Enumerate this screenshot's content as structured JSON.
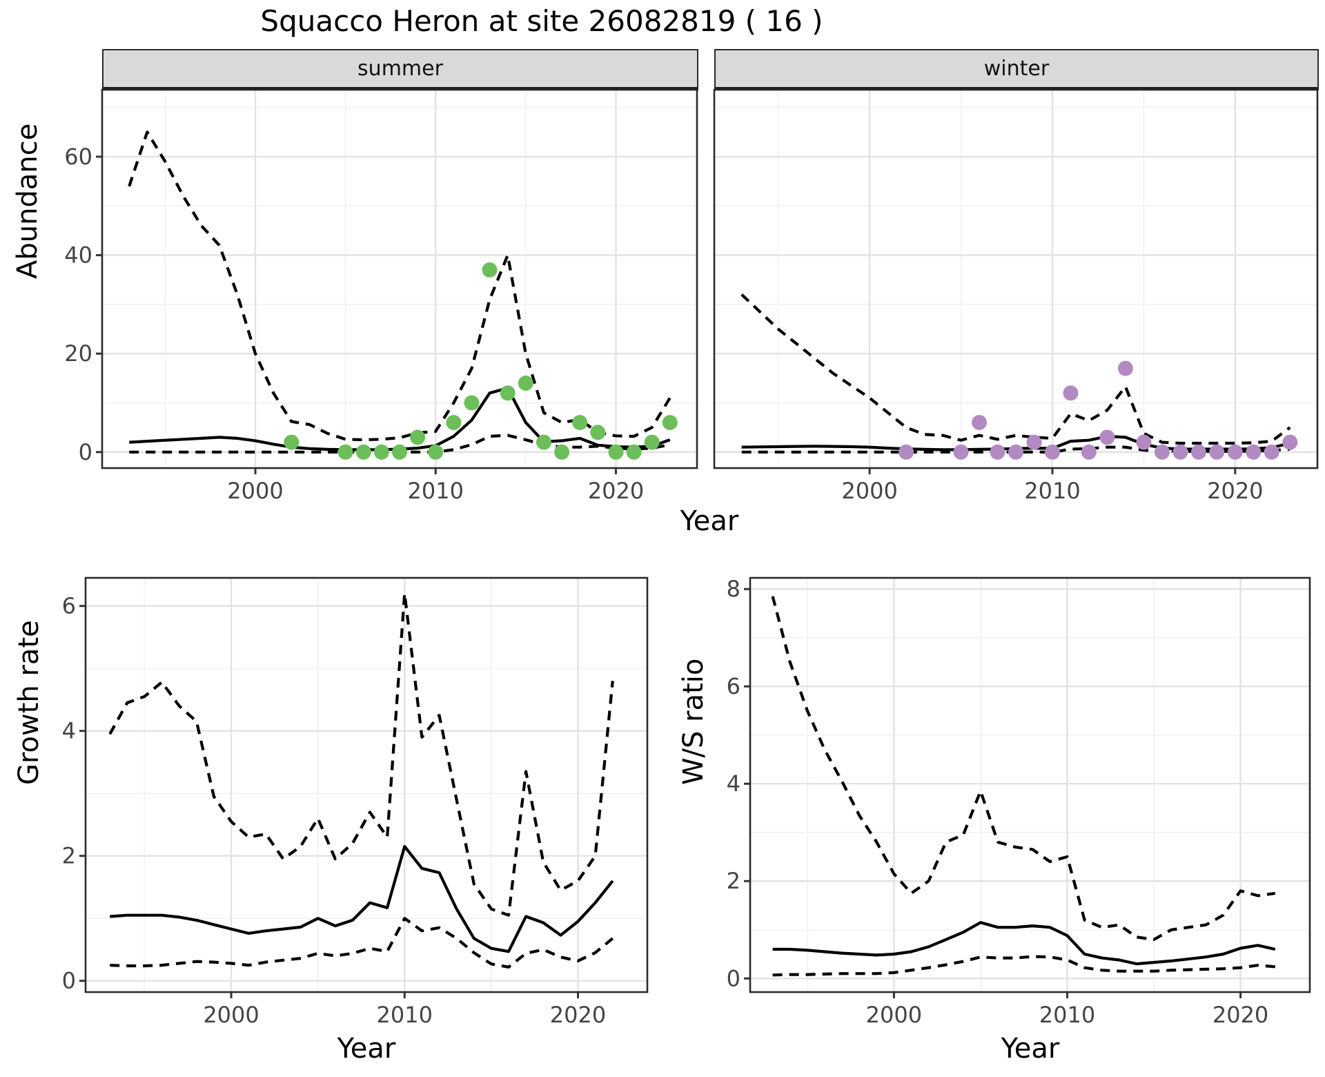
{
  "title": "Squacco Heron at site 26082819 ( 16 )",
  "axes": {
    "year": "Year",
    "abundance": "Abundance",
    "growth": "Growth rate",
    "ws": "W/S ratio"
  },
  "colors": {
    "summer_point": "#6cbe59",
    "winter_point": "#b28ac2",
    "line": "#000000",
    "grid_major": "#e2e2e2",
    "grid_minor": "#f1f1f1",
    "panel_border": "#2a2a2a",
    "axis_text": "#444444",
    "strip_bg": "#d9d9d9"
  },
  "chart_data": [
    {
      "type": "line",
      "name": "abundance_summer",
      "facet": "summer",
      "xlabel": "Year",
      "ylabel": "Abundance",
      "xlim": [
        1991.5,
        2024.5
      ],
      "ylim": [
        -3.25,
        73.6
      ],
      "xticks": [
        2000,
        2010,
        2020
      ],
      "xminor": [
        1995,
        2005,
        2015
      ],
      "yticks": [
        0,
        20,
        40,
        60
      ],
      "yminor": [
        10,
        30,
        50,
        70
      ],
      "series": [
        {
          "name": "upper_ci",
          "style": "dashed",
          "x": [
            1993,
            1994,
            1995,
            1996,
            1997,
            1998,
            1999,
            2000,
            2001,
            2002,
            2003,
            2004,
            2005,
            2006,
            2007,
            2008,
            2009,
            2010,
            2011,
            2012,
            2013,
            2014,
            2015,
            2016,
            2017,
            2018,
            2019,
            2020,
            2021,
            2022,
            2023
          ],
          "y": [
            54,
            65,
            59,
            52,
            46,
            42,
            32,
            20,
            12,
            6.2,
            5.6,
            3.8,
            2.6,
            2.5,
            2.6,
            2.9,
            3.9,
            4.2,
            10,
            17,
            31,
            40,
            20,
            8,
            6,
            6.6,
            4,
            3.3,
            3.2,
            5,
            11
          ]
        },
        {
          "name": "mean",
          "style": "solid",
          "x": [
            1993,
            1994,
            1995,
            1996,
            1997,
            1998,
            1999,
            2000,
            2001,
            2002,
            2003,
            2004,
            2005,
            2006,
            2007,
            2008,
            2009,
            2010,
            2011,
            2012,
            2013,
            2014,
            2015,
            2016,
            2017,
            2018,
            2019,
            2020,
            2021,
            2022,
            2023
          ],
          "y": [
            2.0,
            2.2,
            2.4,
            2.6,
            2.8,
            3.0,
            2.8,
            2.3,
            1.6,
            1.0,
            0.7,
            0.55,
            0.5,
            0.5,
            0.5,
            0.6,
            0.8,
            1.3,
            3.2,
            6.5,
            12,
            13,
            6,
            2.1,
            2.3,
            2.8,
            1.4,
            1.1,
            1.0,
            1.2,
            2.5
          ]
        },
        {
          "name": "lower_ci",
          "style": "dashed",
          "x": [
            1993,
            1994,
            1995,
            1996,
            1997,
            1998,
            1999,
            2000,
            2001,
            2002,
            2003,
            2004,
            2005,
            2006,
            2007,
            2008,
            2009,
            2010,
            2011,
            2012,
            2013,
            2014,
            2015,
            2016,
            2017,
            2018,
            2019,
            2020,
            2021,
            2022,
            2023
          ],
          "y": [
            0,
            0,
            0,
            0,
            0,
            0,
            0,
            0,
            0,
            0,
            0,
            0,
            0,
            0,
            0,
            0,
            0,
            0,
            0.5,
            1.5,
            3.2,
            3.4,
            2.5,
            1.5,
            1.0,
            1.0,
            1.2,
            0.8,
            0.6,
            0.8,
            1.5
          ]
        }
      ],
      "points": {
        "name": "observed_counts",
        "color_key": "summer_point",
        "x": [
          2002,
          2005,
          2006,
          2007,
          2008,
          2009,
          2010,
          2011,
          2012,
          2013,
          2014,
          2015,
          2016,
          2017,
          2018,
          2019,
          2020,
          2021,
          2022,
          2023
        ],
        "y": [
          2,
          0,
          0,
          0,
          0,
          3,
          0,
          6,
          10,
          37,
          12,
          14,
          2,
          0,
          6,
          4,
          0,
          0,
          2,
          6
        ]
      }
    },
    {
      "type": "line",
      "name": "abundance_winter",
      "facet": "winter",
      "xlabel": "Year",
      "ylabel": "Abundance",
      "xlim": [
        1991.5,
        2024.5
      ],
      "ylim": [
        -3.25,
        73.6
      ],
      "xticks": [
        2000,
        2010,
        2020
      ],
      "xminor": [
        1995,
        2005,
        2015
      ],
      "yticks": [
        0,
        20,
        40,
        60
      ],
      "yminor": [
        10,
        30,
        50,
        70
      ],
      "series": [
        {
          "name": "upper_ci",
          "style": "dashed",
          "x": [
            1993,
            1994,
            1995,
            1996,
            1997,
            1998,
            1999,
            2000,
            2001,
            2002,
            2003,
            2004,
            2005,
            2006,
            2007,
            2008,
            2009,
            2010,
            2011,
            2012,
            2013,
            2014,
            2015,
            2016,
            2017,
            2018,
            2019,
            2020,
            2021,
            2022,
            2023
          ],
          "y": [
            32,
            28.5,
            25,
            22,
            19,
            16,
            13.5,
            11,
            8,
            5,
            3.6,
            3.4,
            2.4,
            3.4,
            2.6,
            3.4,
            3.0,
            2.8,
            7.8,
            6.4,
            8.5,
            13.3,
            3.8,
            2.0,
            1.8,
            1.8,
            1.8,
            1.8,
            1.9,
            2.2,
            5.0
          ]
        },
        {
          "name": "mean",
          "style": "solid",
          "x": [
            1993,
            1994,
            1995,
            1996,
            1997,
            1998,
            1999,
            2000,
            2001,
            2002,
            2003,
            2004,
            2005,
            2006,
            2007,
            2008,
            2009,
            2010,
            2011,
            2012,
            2013,
            2014,
            2015,
            2016,
            2017,
            2018,
            2019,
            2020,
            2021,
            2022,
            2023
          ],
          "y": [
            1.0,
            1.05,
            1.1,
            1.15,
            1.2,
            1.15,
            1.1,
            1.0,
            0.8,
            0.65,
            0.55,
            0.5,
            0.5,
            0.55,
            0.6,
            0.7,
            0.8,
            0.75,
            2.2,
            2.4,
            3.2,
            3.0,
            1.6,
            0.8,
            0.6,
            0.6,
            0.6,
            0.6,
            0.65,
            0.9,
            1.8
          ]
        },
        {
          "name": "lower_ci",
          "style": "dashed",
          "x": [
            1993,
            1994,
            1995,
            1996,
            1997,
            1998,
            1999,
            2000,
            2001,
            2002,
            2003,
            2004,
            2005,
            2006,
            2007,
            2008,
            2009,
            2010,
            2011,
            2012,
            2013,
            2014,
            2015,
            2016,
            2017,
            2018,
            2019,
            2020,
            2021,
            2022,
            2023
          ],
          "y": [
            0,
            0,
            0,
            0,
            0,
            0,
            0,
            0,
            0,
            0,
            0,
            0,
            0,
            0,
            0,
            0,
            0,
            0,
            0.6,
            0.7,
            1.0,
            1.0,
            0.4,
            0.2,
            0.15,
            0.15,
            0.15,
            0.15,
            0.2,
            0.3,
            0.6
          ]
        }
      ],
      "points": {
        "name": "observed_counts",
        "color_key": "winter_point",
        "x": [
          2002,
          2005,
          2006,
          2007,
          2008,
          2009,
          2010,
          2011,
          2012,
          2013,
          2014,
          2015,
          2016,
          2017,
          2018,
          2019,
          2020,
          2021,
          2022,
          2023
        ],
        "y": [
          0,
          0,
          6,
          0,
          0,
          2,
          0,
          12,
          0,
          3,
          17,
          2,
          0,
          0,
          0,
          0,
          0,
          0,
          0,
          2
        ]
      }
    },
    {
      "type": "line",
      "name": "growth_rate",
      "facet": "",
      "xlabel": "Year",
      "ylabel": "Growth rate",
      "xlim": [
        1991.6,
        2024.0
      ],
      "ylim": [
        -0.18,
        6.45
      ],
      "xticks": [
        2000,
        2010,
        2020
      ],
      "xminor": [
        1995,
        2005,
        2015
      ],
      "yticks": [
        0,
        2,
        4,
        6
      ],
      "yminor": [
        1,
        3,
        5
      ],
      "series": [
        {
          "name": "upper_ci",
          "style": "dashed",
          "x": [
            1993,
            1994,
            1995,
            1996,
            1997,
            1998,
            1999,
            2000,
            2001,
            2002,
            2003,
            2004,
            2005,
            2006,
            2007,
            2008,
            2009,
            2010,
            2011,
            2012,
            2013,
            2014,
            2015,
            2016,
            2017,
            2018,
            2019,
            2020,
            2021,
            2022
          ],
          "y": [
            3.95,
            4.45,
            4.55,
            4.78,
            4.4,
            4.15,
            2.95,
            2.55,
            2.3,
            2.35,
            1.95,
            2.15,
            2.6,
            1.95,
            2.2,
            2.7,
            2.3,
            6.2,
            3.9,
            4.25,
            2.9,
            1.55,
            1.15,
            1.05,
            3.35,
            1.9,
            1.45,
            1.6,
            2.0,
            4.8
          ]
        },
        {
          "name": "mean",
          "style": "solid",
          "x": [
            1993,
            1994,
            1995,
            1996,
            1997,
            1998,
            1999,
            2000,
            2001,
            2002,
            2003,
            2004,
            2005,
            2006,
            2007,
            2008,
            2009,
            2010,
            2011,
            2012,
            2013,
            2014,
            2015,
            2016,
            2017,
            2018,
            2019,
            2020,
            2021,
            2022
          ],
          "y": [
            1.03,
            1.05,
            1.05,
            1.05,
            1.02,
            0.97,
            0.9,
            0.83,
            0.76,
            0.8,
            0.83,
            0.86,
            1.0,
            0.88,
            0.97,
            1.25,
            1.17,
            2.15,
            1.8,
            1.73,
            1.15,
            0.68,
            0.52,
            0.47,
            1.03,
            0.93,
            0.73,
            0.95,
            1.25,
            1.6
          ]
        },
        {
          "name": "lower_ci",
          "style": "dashed",
          "x": [
            1993,
            1994,
            1995,
            1996,
            1997,
            1998,
            1999,
            2000,
            2001,
            2002,
            2003,
            2004,
            2005,
            2006,
            2007,
            2008,
            2009,
            2010,
            2011,
            2012,
            2013,
            2014,
            2015,
            2016,
            2017,
            2018,
            2019,
            2020,
            2021,
            2022
          ],
          "y": [
            0.25,
            0.24,
            0.24,
            0.25,
            0.28,
            0.31,
            0.3,
            0.28,
            0.25,
            0.3,
            0.33,
            0.36,
            0.44,
            0.4,
            0.44,
            0.52,
            0.47,
            1.0,
            0.8,
            0.85,
            0.68,
            0.45,
            0.27,
            0.22,
            0.44,
            0.5,
            0.38,
            0.32,
            0.45,
            0.68
          ]
        }
      ],
      "points": null
    },
    {
      "type": "line",
      "name": "ws_ratio",
      "facet": "",
      "xlabel": "Year",
      "ylabel": "W/S ratio",
      "xlim": [
        1991.7,
        2024.0
      ],
      "ylim": [
        -0.28,
        8.23
      ],
      "xticks": [
        2000,
        2010,
        2020
      ],
      "xminor": [
        1995,
        2005,
        2015
      ],
      "yticks": [
        0,
        2,
        4,
        6,
        8
      ],
      "yminor": [
        1,
        3,
        5,
        7
      ],
      "series": [
        {
          "name": "upper_ci",
          "style": "dashed",
          "x": [
            1993,
            1994,
            1995,
            1996,
            1997,
            1998,
            1999,
            2000,
            2001,
            2002,
            2003,
            2004,
            2005,
            2006,
            2007,
            2008,
            2009,
            2010,
            2011,
            2012,
            2013,
            2014,
            2015,
            2016,
            2017,
            2018,
            2019,
            2020,
            2021,
            2022
          ],
          "y": [
            7.85,
            6.5,
            5.5,
            4.7,
            4.05,
            3.35,
            2.8,
            2.15,
            1.75,
            2.0,
            2.8,
            2.95,
            3.85,
            2.8,
            2.7,
            2.65,
            2.4,
            2.5,
            1.2,
            1.05,
            1.1,
            0.85,
            0.8,
            1.0,
            1.05,
            1.1,
            1.3,
            1.8,
            1.7,
            1.75
          ]
        },
        {
          "name": "mean",
          "style": "solid",
          "x": [
            1993,
            1994,
            1995,
            1996,
            1997,
            1998,
            1999,
            2000,
            2001,
            2002,
            2003,
            2004,
            2005,
            2006,
            2007,
            2008,
            2009,
            2010,
            2011,
            2012,
            2013,
            2014,
            2015,
            2016,
            2017,
            2018,
            2019,
            2020,
            2021,
            2022
          ],
          "y": [
            0.6,
            0.6,
            0.58,
            0.55,
            0.52,
            0.5,
            0.48,
            0.5,
            0.55,
            0.65,
            0.8,
            0.95,
            1.15,
            1.05,
            1.05,
            1.08,
            1.05,
            0.88,
            0.5,
            0.42,
            0.38,
            0.3,
            0.33,
            0.36,
            0.4,
            0.44,
            0.5,
            0.62,
            0.68,
            0.6
          ]
        },
        {
          "name": "lower_ci",
          "style": "dashed",
          "x": [
            1993,
            1994,
            1995,
            1996,
            1997,
            1998,
            1999,
            2000,
            2001,
            2002,
            2003,
            2004,
            2005,
            2006,
            2007,
            2008,
            2009,
            2010,
            2011,
            2012,
            2013,
            2014,
            2015,
            2016,
            2017,
            2018,
            2019,
            2020,
            2021,
            2022
          ],
          "y": [
            0.07,
            0.08,
            0.08,
            0.09,
            0.1,
            0.1,
            0.1,
            0.12,
            0.17,
            0.22,
            0.28,
            0.35,
            0.44,
            0.42,
            0.42,
            0.45,
            0.44,
            0.38,
            0.22,
            0.17,
            0.15,
            0.15,
            0.15,
            0.17,
            0.18,
            0.19,
            0.2,
            0.22,
            0.27,
            0.24
          ]
        }
      ],
      "points": null
    }
  ]
}
